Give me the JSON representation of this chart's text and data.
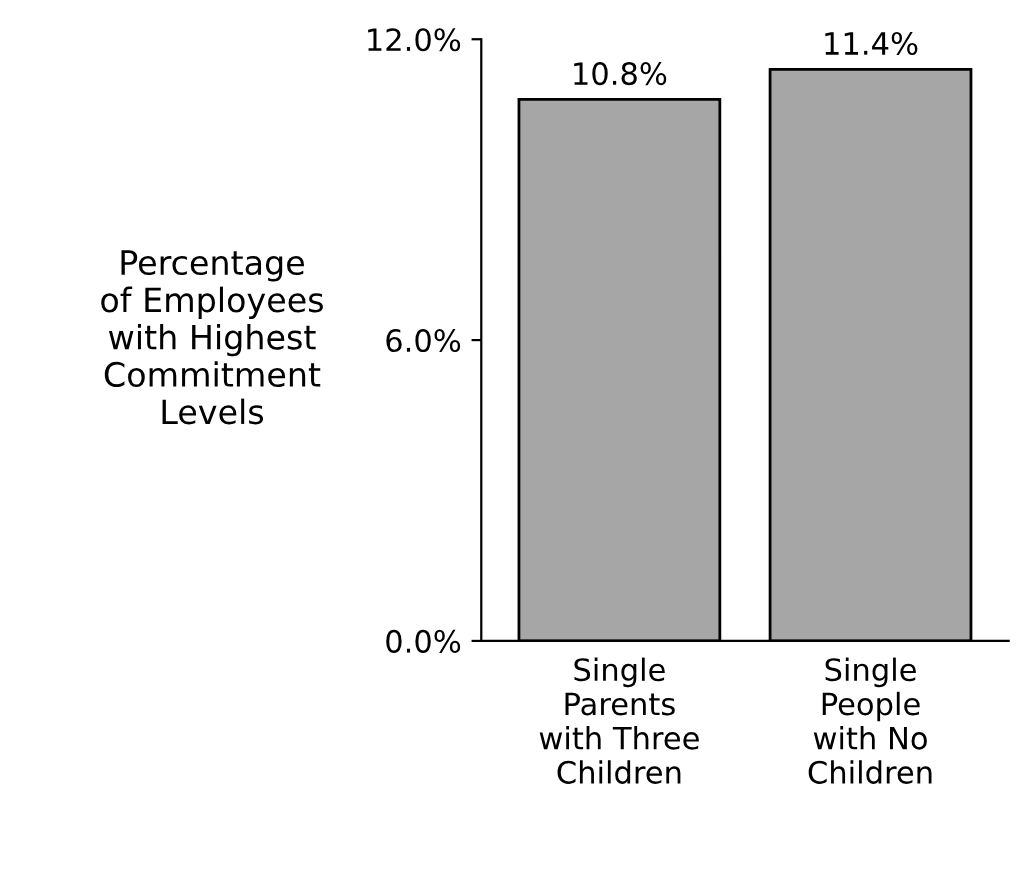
{
  "chart_data": {
    "type": "bar",
    "ylabel": "Percentage\nof Employees\nwith Highest\nCommitment\nLevels",
    "categories": [
      "Single\nParents\nwith Three\nChildren",
      "Single\nPeople\nwith No\nChildren"
    ],
    "values": [
      10.8,
      11.4
    ],
    "value_labels": [
      "10.8%",
      "11.4%"
    ],
    "color": "#a6a6a6",
    "ylim": [
      0,
      12
    ],
    "yticks": [
      {
        "value": 0,
        "label": "0.0%"
      },
      {
        "value": 6,
        "label": "6.0%"
      },
      {
        "value": 12,
        "label": "12.0%"
      }
    ],
    "grid": false,
    "legend": false
  }
}
